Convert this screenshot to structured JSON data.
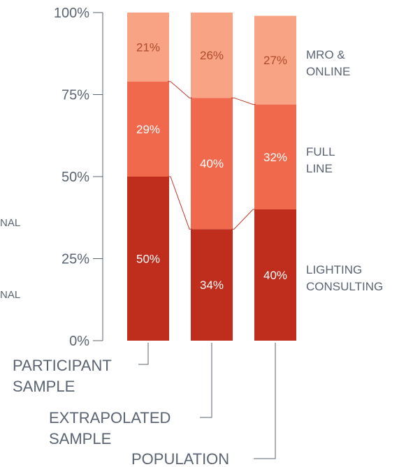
{
  "chart_data": {
    "type": "bar",
    "stacked": true,
    "percent": true,
    "categories": [
      "PARTICIPANT SAMPLE",
      "EXTRAPOLATED SAMPLE",
      "POPULATION"
    ],
    "series": [
      {
        "name": "LIGHTING CONSULTING",
        "values": [
          50,
          34,
          40
        ],
        "color": "#bf2e1c",
        "label_color": "#ffffff"
      },
      {
        "name": "FULL LINE",
        "values": [
          29,
          40,
          32
        ],
        "color": "#f0694c",
        "label_color": "#ffffff"
      },
      {
        "name": "MRO & ONLINE",
        "values": [
          21,
          26,
          27
        ],
        "color": "#f7a384",
        "label_color": "#b04a2e"
      }
    ],
    "data_labels": [
      [
        "50%",
        "34%",
        "40%"
      ],
      [
        "29%",
        "40%",
        "32%"
      ],
      [
        "21%",
        "26%",
        "27%"
      ]
    ],
    "yaxis": {
      "ticks": [
        0,
        25,
        50,
        75,
        100
      ],
      "tick_labels": [
        "0%",
        "25%",
        "50%",
        "75%",
        "100%"
      ],
      "ylim": [
        0,
        100
      ]
    },
    "legend_lines": [
      [
        "MRO &",
        "ONLINE"
      ],
      [
        "FULL",
        "LINE"
      ],
      [
        "LIGHTING",
        "CONSULTING"
      ]
    ],
    "category_lines": [
      [
        "PARTICIPANT",
        "SAMPLE"
      ],
      [
        "EXTRAPOLATED",
        "SAMPLE"
      ],
      [
        "POPULATION"
      ]
    ],
    "cutoff_left_labels": [
      "NAL",
      "NAL"
    ],
    "grid": false,
    "legend_placement": "right",
    "colors": {
      "axis": "#5b6472",
      "connector": "#c0392b"
    }
  }
}
